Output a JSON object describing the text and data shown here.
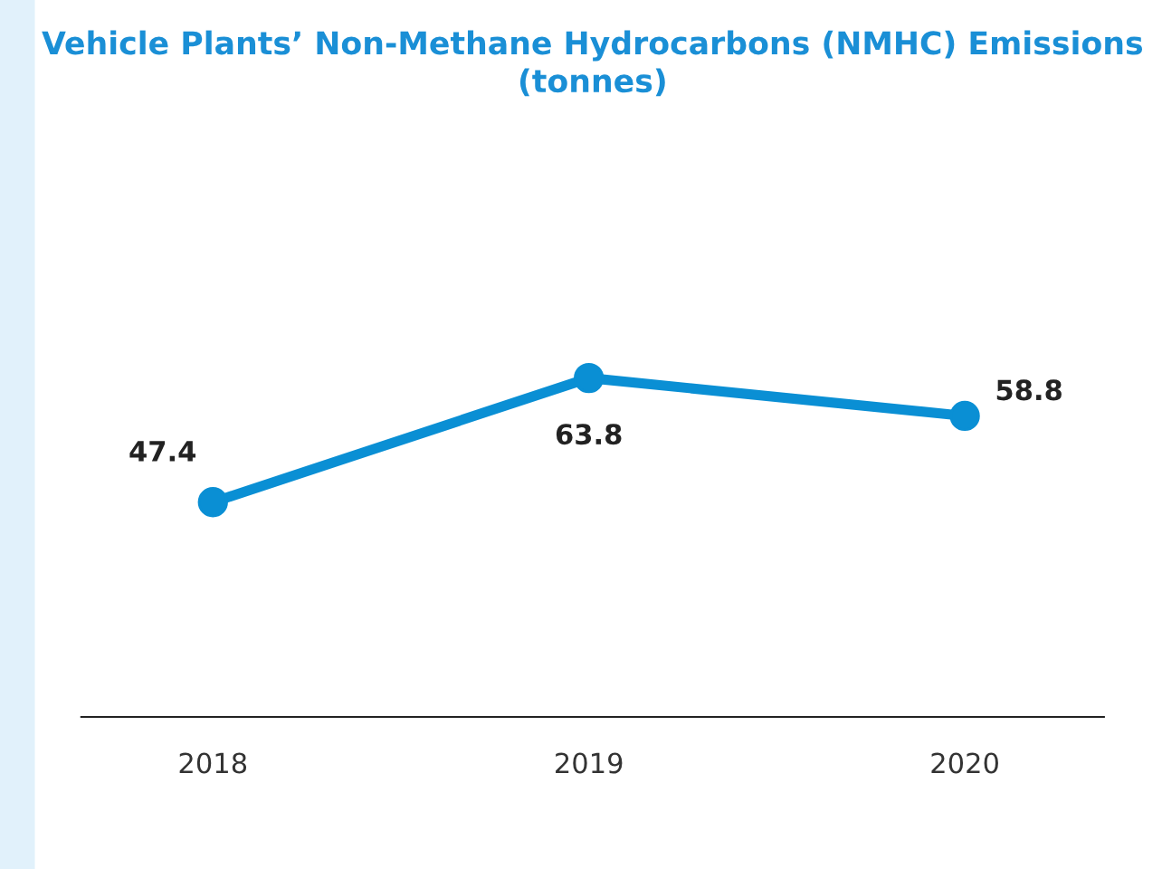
{
  "chart_data": {
    "type": "line",
    "title": "Vehicle Plants’ Non-Methane Hydrocarbons (NMHC) Emissions\n(tonnes)",
    "categories": [
      "2018",
      "2019",
      "2020"
    ],
    "series": [
      {
        "color": "#0a8fd4",
        "values": [
          47.4,
          63.8,
          58.8
        ]
      }
    ],
    "tick_labels": "x",
    "data_labels": true,
    "marker": "circle",
    "line_style": "solid",
    "grid": false,
    "legend": false
  }
}
